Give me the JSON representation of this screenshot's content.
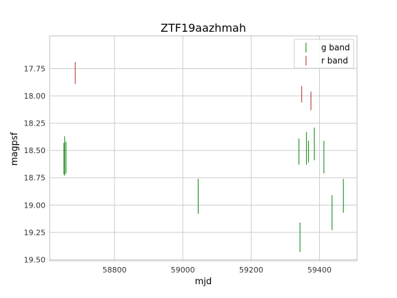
{
  "chart_data": {
    "type": "scatter",
    "title": "ZTF19aazhmah",
    "xlabel": "mjd",
    "ylabel": "magpsf",
    "xlim": [
      58610,
      59510
    ],
    "ylim": [
      19.51,
      17.45
    ],
    "y_inverted": true,
    "grid": true,
    "legend_position": "top-right",
    "x_ticks": [
      58800,
      59000,
      59200,
      59400
    ],
    "x_tick_labels": [
      "58800",
      "59000",
      "59200",
      "59400"
    ],
    "y_ticks": [
      17.75,
      18.0,
      18.25,
      18.5,
      18.75,
      19.0,
      19.25,
      19.5
    ],
    "y_tick_labels": [
      "17.75",
      "18.00",
      "18.25",
      "18.50",
      "18.75",
      "19.00",
      "19.25",
      "19.50"
    ],
    "series": [
      {
        "name": "g band",
        "color": "#008000",
        "marker": "vertical-line",
        "points": [
          {
            "x": 58652,
            "low": 18.43,
            "high": 18.72
          },
          {
            "x": 58654,
            "low": 18.37,
            "high": 18.73
          },
          {
            "x": 58658,
            "low": 18.42,
            "high": 18.71
          },
          {
            "x": 59045,
            "low": 18.76,
            "high": 19.08
          },
          {
            "x": 59340,
            "low": 18.39,
            "high": 18.63
          },
          {
            "x": 59343,
            "low": 19.16,
            "high": 19.43
          },
          {
            "x": 59362,
            "low": 18.33,
            "high": 18.63
          },
          {
            "x": 59368,
            "low": 18.41,
            "high": 18.61
          },
          {
            "x": 59385,
            "low": 18.29,
            "high": 18.59
          },
          {
            "x": 59413,
            "low": 18.41,
            "high": 18.71
          },
          {
            "x": 59437,
            "low": 18.91,
            "high": 19.23
          },
          {
            "x": 59470,
            "low": 18.76,
            "high": 19.07
          }
        ]
      },
      {
        "name": "r band",
        "color": "#b22222",
        "marker": "vertical-line",
        "points": [
          {
            "x": 58685,
            "low": 17.69,
            "high": 17.89
          },
          {
            "x": 59348,
            "low": 17.91,
            "high": 18.06
          },
          {
            "x": 59375,
            "low": 17.96,
            "high": 18.13
          }
        ]
      }
    ]
  }
}
